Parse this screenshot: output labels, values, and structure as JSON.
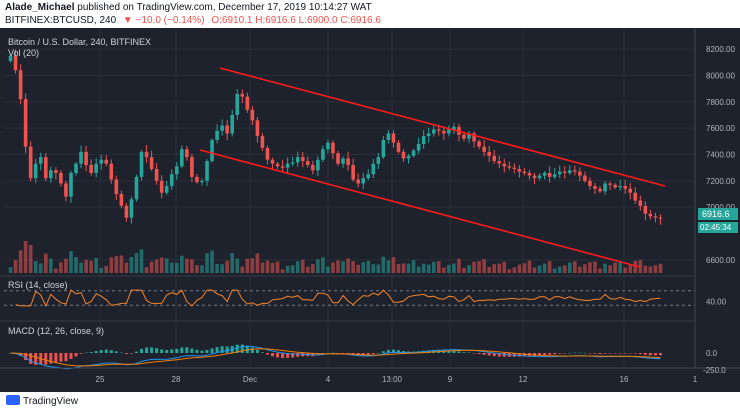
{
  "header": {
    "author": "Alade_Michael",
    "published_text": "published on TradingView.com, December 17, 2019 10:14:27 WAT",
    "symbol_line": "BITFINEX:BTCUSD, 240",
    "change": "▼ −10.0 (−0.14%)",
    "ohlc": "O:6910.1  H:6916.6  L:6900.0  C:6916.6"
  },
  "legend": {
    "title": "Bitcoin / U.S. Dollar, 240, BITFINEX",
    "vol": "Vol (20)",
    "rsi": "RSI (14, close)",
    "macd": "MACD (12, 26, close, 9)"
  },
  "price_tag": {
    "value": "6916.6",
    "countdown": "02:45:34"
  },
  "footer": {
    "brand": "TradingView"
  },
  "colors": {
    "background": "#1e222d",
    "up": "#26a69a",
    "down": "#ef5350",
    "channel": "#ff1a1a",
    "rsi": "#f5832a",
    "macd": "#2196f3",
    "signal": "#f57c00",
    "grid": "#2a2e39"
  },
  "chart_data": {
    "type": "candlestick",
    "price_axis": {
      "ticks": [
        "8200.00",
        "8000.00",
        "7800.00",
        "7600.00",
        "7400.00",
        "7200.00",
        "7000.00",
        "6600.00"
      ],
      "range": [
        6500,
        8300
      ]
    },
    "x_ticks": [
      "25",
      "28",
      "Dec",
      "4",
      "13:00",
      "9",
      "12",
      "16",
      "1"
    ],
    "rsi_axis": {
      "ticks": [
        "40.00"
      ]
    },
    "macd_axis": {
      "ticks": [
        "0.0",
        "-250.0"
      ]
    },
    "closes": [
      8150,
      8040,
      7820,
      7460,
      7220,
      7330,
      7380,
      7220,
      7280,
      7260,
      7180,
      7080,
      7260,
      7330,
      7420,
      7320,
      7260,
      7330,
      7360,
      7330,
      7210,
      7100,
      7010,
      6920,
      7060,
      7230,
      7420,
      7380,
      7290,
      7200,
      7110,
      7160,
      7250,
      7310,
      7440,
      7380,
      7230,
      7190,
      7200,
      7350,
      7510,
      7580,
      7620,
      7560,
      7700,
      7860,
      7840,
      7740,
      7660,
      7540,
      7450,
      7360,
      7330,
      7310,
      7300,
      7330,
      7340,
      7380,
      7350,
      7320,
      7280,
      7360,
      7440,
      7490,
      7410,
      7330,
      7370,
      7320,
      7210,
      7180,
      7220,
      7250,
      7330,
      7380,
      7510,
      7560,
      7490,
      7420,
      7370,
      7390,
      7430,
      7480,
      7540,
      7560,
      7590,
      7580,
      7560,
      7590,
      7610,
      7550,
      7520,
      7560,
      7500,
      7460,
      7420,
      7390,
      7350,
      7330,
      7310,
      7300,
      7290,
      7270,
      7260,
      7240,
      7220,
      7240,
      7260,
      7230,
      7250,
      7270,
      7260,
      7280,
      7270,
      7240,
      7200,
      7160,
      7140,
      7120,
      7180,
      7170,
      7150,
      7160,
      7140,
      7110,
      7050,
      7010,
      6950,
      6930,
      6920,
      6916.6
    ],
    "rsi_levels": [
      70,
      30
    ]
  }
}
